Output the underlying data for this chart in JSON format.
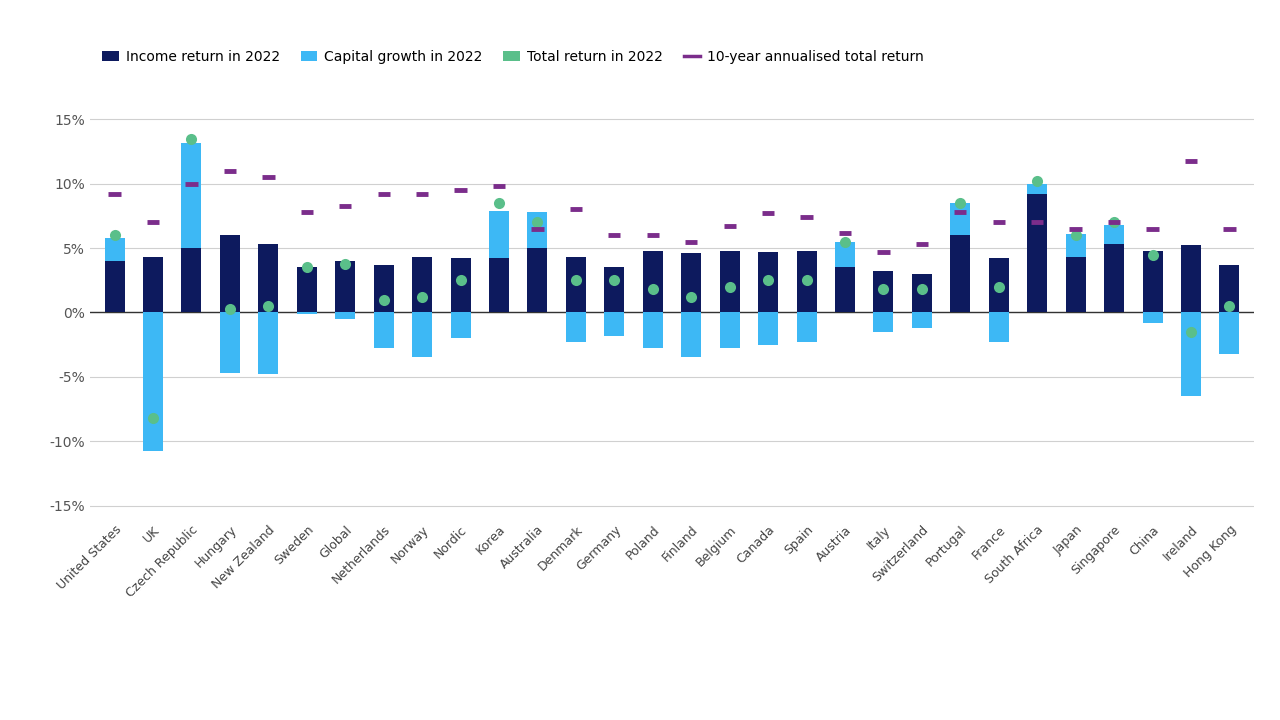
{
  "categories": [
    "United States",
    "UK",
    "Czech Republic",
    "Hungary",
    "New Zealand",
    "Sweden",
    "Global",
    "Netherlands",
    "Norway",
    "Nordic",
    "Korea",
    "Australia",
    "Denmark",
    "Germany",
    "Poland",
    "Finland",
    "Belgium",
    "Canada",
    "Spain",
    "Austria",
    "Italy",
    "Switzerland",
    "Portugal",
    "France",
    "South Africa",
    "Japan",
    "Singapore",
    "China",
    "Ireland",
    "Hong Kong"
  ],
  "income_return": [
    4.0,
    4.3,
    5.0,
    6.0,
    5.3,
    3.5,
    4.0,
    3.7,
    4.3,
    4.2,
    4.2,
    5.0,
    4.3,
    3.5,
    4.8,
    4.6,
    4.8,
    4.7,
    4.8,
    3.5,
    3.2,
    3.0,
    6.0,
    4.2,
    9.2,
    4.3,
    5.3,
    4.8,
    5.2,
    3.7
  ],
  "capital_growth": [
    1.8,
    -10.8,
    8.2,
    -4.7,
    -4.8,
    -0.1,
    -0.5,
    -2.8,
    -3.5,
    -2.0,
    3.7,
    2.8,
    -2.3,
    -1.8,
    -2.8,
    -3.5,
    -2.8,
    -2.5,
    -2.3,
    2.0,
    -1.5,
    -1.2,
    2.5,
    -2.3,
    0.8,
    1.8,
    1.5,
    -0.8,
    -6.5,
    -3.2
  ],
  "total_return": [
    6.0,
    -8.2,
    13.5,
    0.3,
    0.5,
    3.5,
    3.8,
    1.0,
    1.2,
    2.5,
    8.5,
    7.0,
    2.5,
    2.5,
    1.8,
    1.2,
    2.0,
    2.5,
    2.5,
    5.5,
    1.8,
    1.8,
    8.5,
    2.0,
    10.2,
    6.0,
    7.0,
    4.5,
    -1.5,
    0.5
  ],
  "annualised_return": [
    9.2,
    7.0,
    10.0,
    11.0,
    10.5,
    7.8,
    8.3,
    9.2,
    9.2,
    9.5,
    9.8,
    6.5,
    8.0,
    6.0,
    6.0,
    5.5,
    6.7,
    7.7,
    7.4,
    6.2,
    4.7,
    5.3,
    7.8,
    7.0,
    7.0,
    6.5,
    7.0,
    6.5,
    11.8,
    6.5
  ],
  "income_color": "#0d1a5e",
  "capital_color": "#3db8f5",
  "total_color": "#5abf8a",
  "annualised_color": "#7b2d8b",
  "background_color": "#ffffff",
  "grid_color": "#d0d0d0",
  "ylim": [
    -16,
    17
  ],
  "yticks": [
    -15,
    -10,
    -5,
    0,
    5,
    10,
    15
  ],
  "legend_labels": [
    "Income return in 2022",
    "Capital growth in 2022",
    "Total return in 2022",
    "10-year annualised total return"
  ]
}
